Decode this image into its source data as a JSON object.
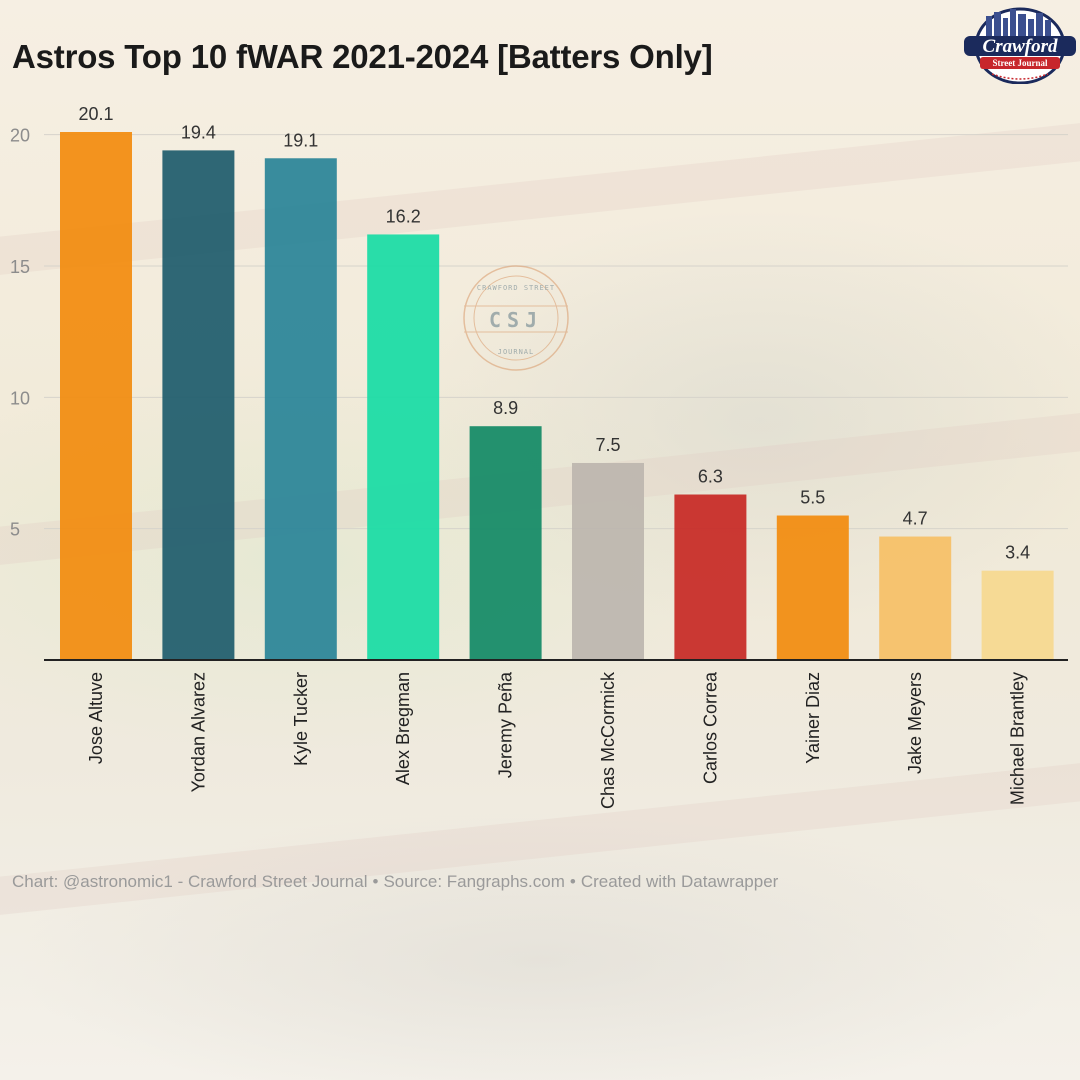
{
  "chart_data": {
    "type": "bar",
    "title": "Astros Top 10 fWAR 2021-2024 [Batters Only]",
    "categories": [
      "Jose Altuve",
      "Yordan Alvarez",
      "Kyle Tucker",
      "Alex Bregman",
      "Jeremy Peña",
      "Chas McCormick",
      "Carlos Correa",
      "Yainer Diaz",
      "Jake Meyers",
      "Michael Brantley"
    ],
    "values": [
      20.1,
      19.4,
      19.1,
      16.2,
      8.9,
      7.5,
      6.3,
      5.5,
      4.7,
      3.4
    ],
    "value_labels": [
      "20.1",
      "19.4",
      "19.1",
      "16.2",
      "8.9",
      "7.5",
      "6.3",
      "5.5",
      "4.7",
      "3.4"
    ],
    "colors": [
      "#f28c0f",
      "#1f5d6d",
      "#2a8498",
      "#19dca5",
      "#138a66",
      "#bcb6ae",
      "#c72a26",
      "#f28c0f",
      "#f6c066",
      "#f6d88f"
    ],
    "yticks": [
      5,
      10,
      15,
      20
    ],
    "ytick_labels": [
      "5",
      "10",
      "15",
      "20"
    ],
    "ylim": [
      0,
      20.1
    ],
    "grid": true,
    "legend": "none",
    "xlabel": "",
    "ylabel": ""
  },
  "footer": {
    "chart_credit": "Chart: @astronomic1 - Crawford Street Journal",
    "source": "Source: Fangraphs.com",
    "created_with": "Created with Datawrapper",
    "separator": "•"
  },
  "logo": {
    "name_line1": "Crawford",
    "name_line2": "Street Journal",
    "watermark_top": "CRAWFORD STREET",
    "watermark_mid": "CSJ",
    "watermark_bottom": "JOURNAL"
  }
}
